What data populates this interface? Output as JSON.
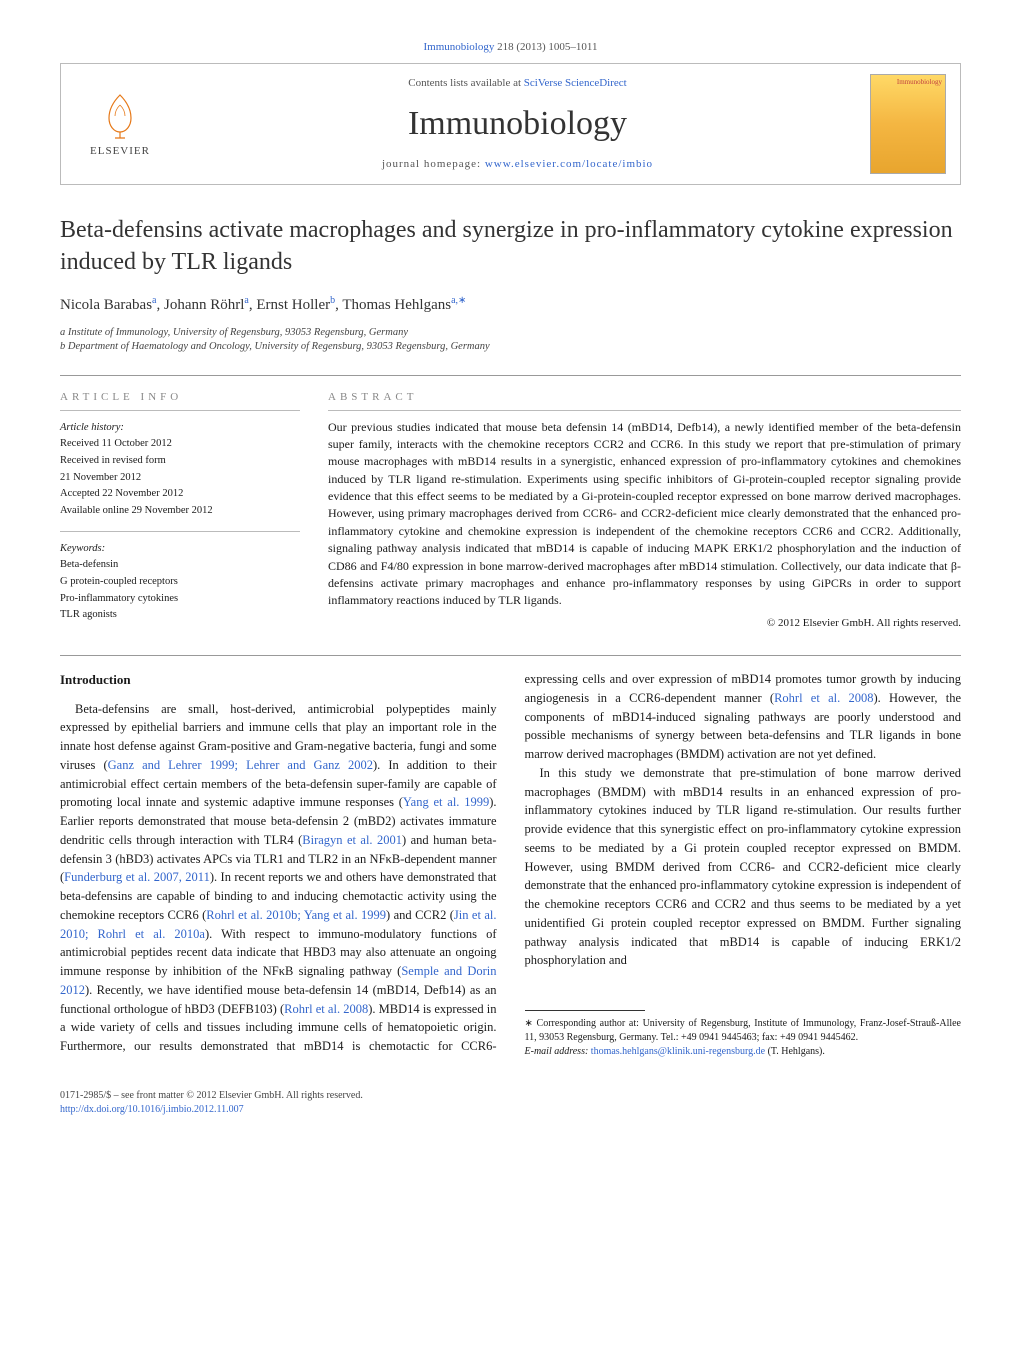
{
  "journal_ref_prefix": "Immunobiology",
  "journal_ref_cite": "218 (2013) 1005–1011",
  "header": {
    "contents_prefix": "Contents lists available at ",
    "contents_link": "SciVerse ScienceDirect",
    "journal_title": "Immunobiology",
    "homepage_prefix": "journal homepage: ",
    "homepage_link": "www.elsevier.com/locate/imbio",
    "elsevier_label": "ELSEVIER",
    "cover_label": "Immunobiology"
  },
  "article": {
    "title": "Beta-defensins activate macrophages and synergize in pro-inflammatory cytokine expression induced by TLR ligands",
    "authors_html": "Nicola Barabas<sup>a</sup>, Johann Röhrl<sup>a</sup>, Ernst Holler<sup>b</sup>, Thomas Hehlgans<sup>a,∗</sup>",
    "affiliations": [
      "a Institute of Immunology, University of Regensburg, 93053 Regensburg, Germany",
      "b Department of Haematology and Oncology, University of Regensburg, 93053 Regensburg, Germany"
    ]
  },
  "info": {
    "label": "ARTICLE INFO",
    "history_heading": "Article history:",
    "history": [
      "Received 11 October 2012",
      "Received in revised form",
      "21 November 2012",
      "Accepted 22 November 2012",
      "Available online 29 November 2012"
    ],
    "keywords_heading": "Keywords:",
    "keywords": [
      "Beta-defensin",
      "G protein-coupled receptors",
      "Pro-inflammatory cytokines",
      "TLR agonists"
    ]
  },
  "abstract": {
    "label": "ABSTRACT",
    "text": "Our previous studies indicated that mouse beta defensin 14 (mBD14, Defb14), a newly identified member of the beta-defensin super family, interacts with the chemokine receptors CCR2 and CCR6. In this study we report that pre-stimulation of primary mouse macrophages with mBD14 results in a synergistic, enhanced expression of pro-inflammatory cytokines and chemokines induced by TLR ligand re-stimulation. Experiments using specific inhibitors of Gi-protein-coupled receptor signaling provide evidence that this effect seems to be mediated by a Gi-protein-coupled receptor expressed on bone marrow derived macrophages. However, using primary macrophages derived from CCR6- and CCR2-deficient mice clearly demonstrated that the enhanced pro-inflammatory cytokine and chemokine expression is independent of the chemokine receptors CCR6 and CCR2. Additionally, signaling pathway analysis indicated that mBD14 is capable of inducing MAPK ERK1/2 phosphorylation and the induction of CD86 and F4/80 expression in bone marrow-derived macrophages after mBD14 stimulation. Collectively, our data indicate that β-defensins activate primary macrophages and enhance pro-inflammatory responses by using GiPCRs in order to support inflammatory reactions induced by TLR ligands.",
    "copyright": "© 2012 Elsevier GmbH. All rights reserved."
  },
  "intro": {
    "heading": "Introduction",
    "p1": "Beta-defensins are small, host-derived, antimicrobial polypeptides mainly expressed by epithelial barriers and immune cells that play an important role in the innate host defense against Gram-positive and Gram-negative bacteria, fungi and some viruses (",
    "c1": "Ganz and Lehrer 1999; Lehrer and Ganz 2002",
    "p1b": "). In addition to their antimicrobial effect certain members of the beta-defensin super-family are capable of promoting local innate and systemic adaptive immune responses (",
    "c2": "Yang et al. 1999",
    "p1c": "). Earlier reports demonstrated that mouse beta-defensin 2 (mBD2) activates immature dendritic cells through interaction with TLR4 (",
    "c3": "Biragyn et al. 2001",
    "p1d": ") and human beta-defensin 3 (hBD3) activates APCs via TLR1 and TLR2 in an NFκB-dependent manner (",
    "c4": "Funderburg et al. 2007, 2011",
    "p1e": "). In recent reports we and others have demonstrated that beta-defensins are capable of binding to and inducing chemotactic activity using the chemokine receptors CCR6 (",
    "c5": "Rohrl et al. 2010b; Yang et al. 1999",
    "p1f": ") and CCR2 (",
    "c6": "Jin et al. 2010; Rohrl et al. 2010a",
    "p1g": "). With respect to immuno-modulatory functions of antimicrobial peptides recent data indicate that HBD3 may also attenuate an ongoing immune response by inhibition of the NFκB signaling pathway (",
    "c7": "Semple and Dorin 2012",
    "p1h": "). Recently, we have identified mouse beta-defensin 14 (mBD14, Defb14) as an functional orthologue of hBD3 (DEFB103) (",
    "c8": "Rohrl et al. 2008",
    "p1i": "). MBD14 is expressed in a wide variety of cells and tissues including immune cells of hematopoietic origin. Furthermore, our results demonstrated that mBD14 is chemotactic for CCR6-expressing cells and over expression of mBD14 promotes tumor growth by inducing angiogenesis in a CCR6-dependent manner (",
    "c9": "Rohrl et al. 2008",
    "p1j": "). However, the components of mBD14-induced signaling pathways are poorly understood and possible mechanisms of synergy between beta-defensins and TLR ligands in bone marrow derived macrophages (BMDM) activation are not yet defined.",
    "p2": "In this study we demonstrate that pre-stimulation of bone marrow derived macrophages (BMDM) with mBD14 results in an enhanced expression of pro-inflammatory cytokines induced by TLR ligand re-stimulation. Our results further provide evidence that this synergistic effect on pro-inflammatory cytokine expression seems to be mediated by a Gi protein coupled receptor expressed on BMDM. However, using BMDM derived from CCR6- and CCR2-deficient mice clearly demonstrate that the enhanced pro-inflammatory cytokine expression is independent of the chemokine receptors CCR6 and CCR2 and thus seems to be mediated by a yet unidentified Gi protein coupled receptor expressed on BMDM. Further signaling pathway analysis indicated that mBD14 is capable of inducing ERK1/2 phosphorylation and"
  },
  "footnote": {
    "corr": "∗ Corresponding author at: University of Regensburg, Institute of Immunology, Franz-Josef-Strauß-Allee 11, 93053 Regensburg, Germany. Tel.: +49 0941 9445463; fax: +49 0941 9445462.",
    "email_label": "E-mail address: ",
    "email": "thomas.hehlgans@klinik.uni-regensburg.de",
    "email_suffix": " (T. Hehlgans)."
  },
  "bottom": {
    "left1": "0171-2985/$ – see front matter © 2012 Elsevier GmbH. All rights reserved.",
    "left2_label": "http://dx.doi.org/10.1016/j.imbio.2012.11.007"
  },
  "colors": {
    "link": "#3366cc",
    "elsevier_orange": "#e67817",
    "text": "#1a1a1a",
    "muted": "#555555"
  }
}
